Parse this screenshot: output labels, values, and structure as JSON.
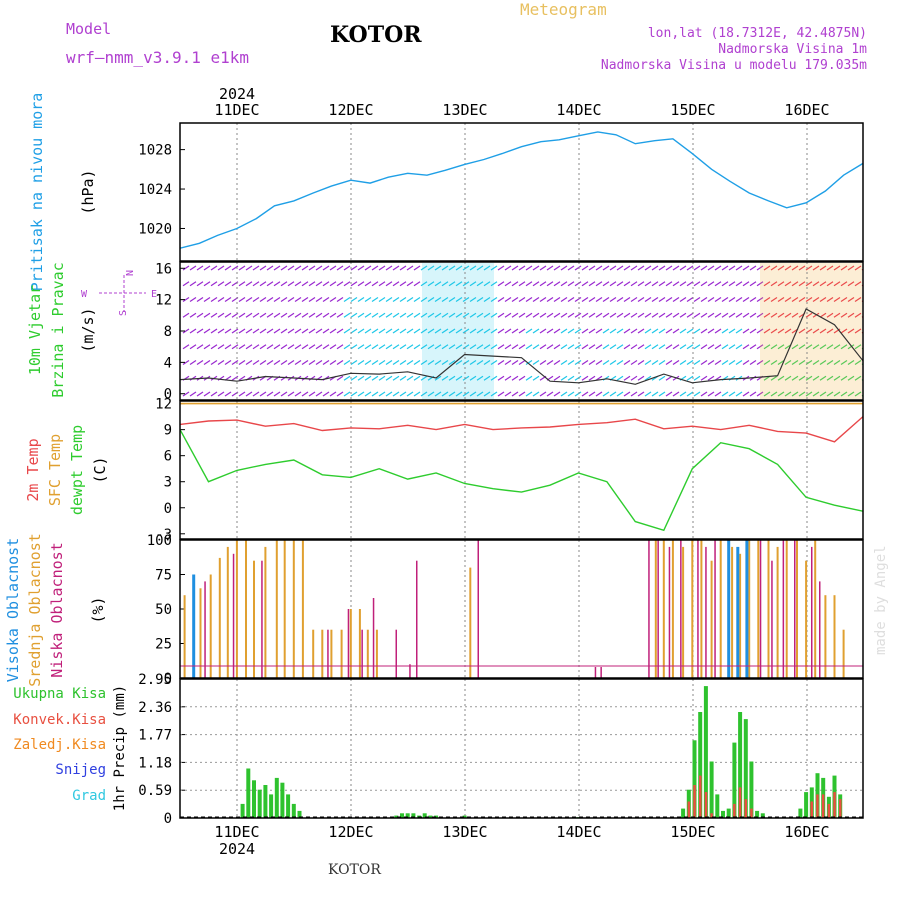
{
  "header": {
    "model_label": "Model",
    "model_name": "wrf–nmm_v3.9.1  e1km",
    "station": "KOTOR",
    "product": "Meteogram",
    "coords": "lon,lat (18.7312E, 42.4875N)",
    "elevation": "Nadmorska Visina 1m",
    "model_elevation": "Nadmorska Visina u modelu 179.035m",
    "credit": "made by Angel",
    "footer_station": "KOTOR"
  },
  "colors": {
    "pressure": "#1f9fe6",
    "temp2m": "#e8474a",
    "sfc_temp": "#e0a030",
    "dewpoint": "#2ecc2e",
    "high_cloud": "#1f8fe0",
    "mid_cloud": "#e0a030",
    "low_cloud": "#c0207a",
    "total_precip": "#2ec22e",
    "conv_precip": "#e85040",
    "frozen_precip": "#f08a20",
    "snow": "#3040e0",
    "hail": "#30c8e0",
    "wind_purple": "#9a2ad0",
    "wind_cyan": "#20c8e8",
    "wind_green": "#30d060",
    "wind_red": "#e83050",
    "title": "#b040d0",
    "product": "#e8c060"
  },
  "chart_data": [
    {
      "type": "line",
      "panel": "pressure",
      "ylabel": "Pritisak na nivou mora",
      "yunit": "(hPa)",
      "yticks": [
        "1020",
        "1024",
        "1028"
      ],
      "ylim": [
        1016.7,
        1030.7
      ],
      "xlim": [
        0,
        6
      ],
      "series": [
        {
          "x": [
            0,
            0.17,
            0.33,
            0.5,
            0.67,
            0.83,
            1,
            1.17,
            1.33,
            1.5,
            1.67,
            1.83,
            2,
            2.17,
            2.33,
            2.5,
            2.67,
            2.83,
            3,
            3.17,
            3.33,
            3.5,
            3.67,
            3.83,
            4,
            4.17,
            4.33,
            4.5,
            4.67,
            4.83,
            5,
            5.17,
            5.33,
            5.5,
            5.67,
            5.83,
            6
          ],
          "y": [
            1018.0,
            1018.5,
            1019.3,
            1020.0,
            1021.0,
            1022.3,
            1022.8,
            1023.6,
            1024.3,
            1024.9,
            1024.6,
            1025.2,
            1025.6,
            1025.4,
            1025.9,
            1026.5,
            1027.0,
            1027.6,
            1028.3,
            1028.8,
            1029.0,
            1029.4,
            1029.8,
            1029.5,
            1028.6,
            1028.9,
            1029.1,
            1027.6,
            1026.0,
            1024.8,
            1023.6,
            1022.8,
            1022.1,
            1022.6,
            1023.8,
            1025.4,
            1026.6
          ]
        }
      ]
    },
    {
      "type": "line",
      "panel": "wind",
      "ylabel": [
        "10m  Vjetar",
        "Brzina i Pravac"
      ],
      "yunit": "(m/s)",
      "compass": [
        "N",
        "E",
        "W",
        "S"
      ],
      "yticks": [
        "0",
        "4",
        "8",
        "12",
        "16"
      ],
      "ylim": [
        -0.8,
        16.8
      ],
      "xlim": [
        0,
        6
      ],
      "series": [
        {
          "name": "speed",
          "x": [
            0,
            0.25,
            0.5,
            0.75,
            1,
            1.25,
            1.5,
            1.75,
            2,
            2.25,
            2.5,
            2.75,
            3,
            3.25,
            3.5,
            3.75,
            4,
            4.25,
            4.5,
            4.75,
            5,
            5.25,
            5.5,
            5.75,
            6
          ],
          "y": [
            1.8,
            2.0,
            1.6,
            2.2,
            2.0,
            1.8,
            2.6,
            2.5,
            2.8,
            2.0,
            5.0,
            4.8,
            4.6,
            1.6,
            1.4,
            1.9,
            1.2,
            2.5,
            1.4,
            1.8,
            2.0,
            2.3,
            10.8,
            8.8,
            4.2
          ]
        }
      ]
    },
    {
      "type": "line",
      "panel": "temperature",
      "ylabel": [
        "2m Temp",
        "SFC Temp",
        "dewpt Temp"
      ],
      "yunit": "(C)",
      "yticks": [
        "-3",
        "0",
        "3",
        "6",
        "9",
        "12"
      ],
      "ylim": [
        -3.6,
        12.3
      ],
      "xlim": [
        0,
        6
      ],
      "series": [
        {
          "name": "2m Temp",
          "x": [
            0,
            0.25,
            0.5,
            0.75,
            1,
            1.25,
            1.5,
            1.75,
            2,
            2.25,
            2.5,
            2.75,
            3,
            3.25,
            3.5,
            3.75,
            4,
            4.25,
            4.5,
            4.75,
            5,
            5.25,
            5.5,
            5.75,
            6
          ],
          "y": [
            9.6,
            10.0,
            10.1,
            9.4,
            9.7,
            8.9,
            9.2,
            9.1,
            9.5,
            9.0,
            9.6,
            9.0,
            9.2,
            9.3,
            9.6,
            9.8,
            10.2,
            9.1,
            9.4,
            9.0,
            9.5,
            8.8,
            8.6,
            7.6,
            10.5
          ]
        },
        {
          "name": "SFC Temp",
          "x": [
            0,
            6
          ],
          "y": [
            12.0,
            12.0
          ]
        },
        {
          "name": "dewpt Temp",
          "x": [
            0,
            0.25,
            0.5,
            0.75,
            1,
            1.25,
            1.5,
            1.75,
            2,
            2.25,
            2.5,
            2.75,
            3,
            3.25,
            3.5,
            3.75,
            4,
            4.25,
            4.5,
            4.75,
            5,
            5.25,
            5.5,
            5.75,
            6
          ],
          "y": [
            9.0,
            3.0,
            4.3,
            5.0,
            5.5,
            3.8,
            3.5,
            4.5,
            3.3,
            4.0,
            2.8,
            2.2,
            1.8,
            2.6,
            4.0,
            3.0,
            -1.6,
            -2.6,
            4.5,
            7.5,
            6.8,
            5.0,
            1.2,
            0.3,
            -0.4
          ]
        }
      ]
    },
    {
      "type": "bar",
      "panel": "clouds",
      "ylabel": [
        "Visoka Oblacnost",
        "Srednja Oblacnost",
        "Niska  Oblacnost"
      ],
      "yunit": "(%)",
      "yticks": [
        "0",
        "25",
        "50",
        "75",
        "100"
      ],
      "ylim": [
        0,
        100
      ],
      "xlim": [
        0,
        6
      ],
      "series": [
        {
          "name": "Visoka Oblacnost",
          "x": [
            0.12,
            4.82,
            4.9,
            4.98
          ],
          "values": [
            75,
            100,
            95,
            100
          ]
        },
        {
          "name": "Srednja Oblacnost",
          "x": [
            0.04,
            0.18,
            0.27,
            0.35,
            0.42,
            0.5,
            0.58,
            0.65,
            0.75,
            0.85,
            0.92,
            1,
            1.08,
            1.17,
            1.25,
            1.33,
            1.42,
            1.5,
            1.58,
            1.65,
            1.73,
            2.55,
            4.18,
            4.25,
            4.33,
            4.42,
            4.5,
            4.58,
            4.67,
            4.75,
            4.85,
            4.92,
            5,
            5.08,
            5.17,
            5.25,
            5.33,
            5.42,
            5.5,
            5.58,
            5.67,
            5.75,
            5.83
          ],
          "values": [
            60,
            65,
            75,
            87,
            95,
            100,
            100,
            85,
            95,
            100,
            100,
            100,
            100,
            35,
            35,
            35,
            35,
            50,
            50,
            35,
            35,
            80,
            100,
            100,
            100,
            95,
            100,
            100,
            85,
            100,
            95,
            90,
            100,
            100,
            100,
            95,
            100,
            100,
            85,
            100,
            60,
            60,
            35
          ]
        },
        {
          "name": "Niska  Oblacnost",
          "x": [
            0.22,
            0.47,
            0.72,
            1.3,
            1.48,
            1.6,
            1.7,
            1.9,
            2.02,
            2.08,
            2.62,
            3.65,
            3.7,
            4.12,
            4.2,
            4.3,
            4.4,
            4.55,
            4.62,
            4.7,
            5.1,
            5.2,
            5.3,
            5.4,
            5.55,
            5.62
          ],
          "values": [
            70,
            90,
            85,
            35,
            50,
            35,
            58,
            35,
            10,
            85,
            100,
            8,
            8,
            100,
            100,
            95,
            100,
            100,
            95,
            100,
            100,
            85,
            100,
            100,
            95,
            70
          ]
        }
      ]
    },
    {
      "type": "bar",
      "panel": "precipitation",
      "ylabel": [
        "Ukupna  Kisa",
        "Konvek.Kisa",
        "Zaledj.Kisa",
        "Snijeg",
        "Grad"
      ],
      "yunit": "1hr Precip (mm)",
      "yticks": [
        "0",
        "0.59",
        "1.18",
        "1.77",
        "2.36",
        "2.95"
      ],
      "ylim": [
        0,
        2.95
      ],
      "xlim": [
        0,
        6
      ],
      "x_date_top": [
        "2024",
        "11DEC",
        "12DEC",
        "13DEC",
        "14DEC",
        "15DEC",
        "16DEC"
      ],
      "x_date_bottom": [
        "11DEC",
        "12DEC",
        "13DEC",
        "14DEC",
        "15DEC",
        "16DEC",
        "2024"
      ],
      "series": [
        {
          "name": "Ukupna  Kisa",
          "x": [
            0.55,
            0.6,
            0.65,
            0.7,
            0.75,
            0.8,
            0.85,
            0.9,
            0.95,
            1.0,
            1.05,
            1.9,
            1.95,
            2.0,
            2.05,
            2.1,
            2.15,
            2.2,
            2.25,
            2.5,
            3.5,
            4.42,
            4.47,
            4.52,
            4.57,
            4.62,
            4.67,
            4.72,
            4.77,
            4.82,
            4.87,
            4.92,
            4.97,
            5.02,
            5.07,
            5.12,
            5.45,
            5.5,
            5.55,
            5.6,
            5.65,
            5.7,
            5.75,
            5.8
          ],
          "values": [
            0.3,
            1.05,
            0.8,
            0.6,
            0.7,
            0.5,
            0.85,
            0.75,
            0.5,
            0.3,
            0.15,
            0.05,
            0.1,
            0.1,
            0.1,
            0.05,
            0.1,
            0.05,
            0.05,
            0.05,
            0.02,
            0.2,
            0.6,
            1.65,
            2.25,
            2.8,
            1.2,
            0.5,
            0.15,
            0.2,
            1.6,
            2.25,
            2.1,
            1.2,
            0.15,
            0.1,
            0.2,
            0.55,
            0.65,
            0.95,
            0.85,
            0.45,
            0.9,
            0.5
          ]
        },
        {
          "name": "Konvek.Kisa",
          "x": [
            4.47,
            4.52,
            4.57,
            4.62,
            4.67,
            4.87,
            4.92,
            4.97,
            5.02,
            5.55,
            5.6,
            5.65,
            5.7,
            5.75,
            5.8
          ],
          "values": [
            0.35,
            0.7,
            0.9,
            0.55,
            0.1,
            0.3,
            0.65,
            0.4,
            0.2,
            0.35,
            0.5,
            0.5,
            0.3,
            0.55,
            0.4
          ]
        }
      ]
    }
  ]
}
